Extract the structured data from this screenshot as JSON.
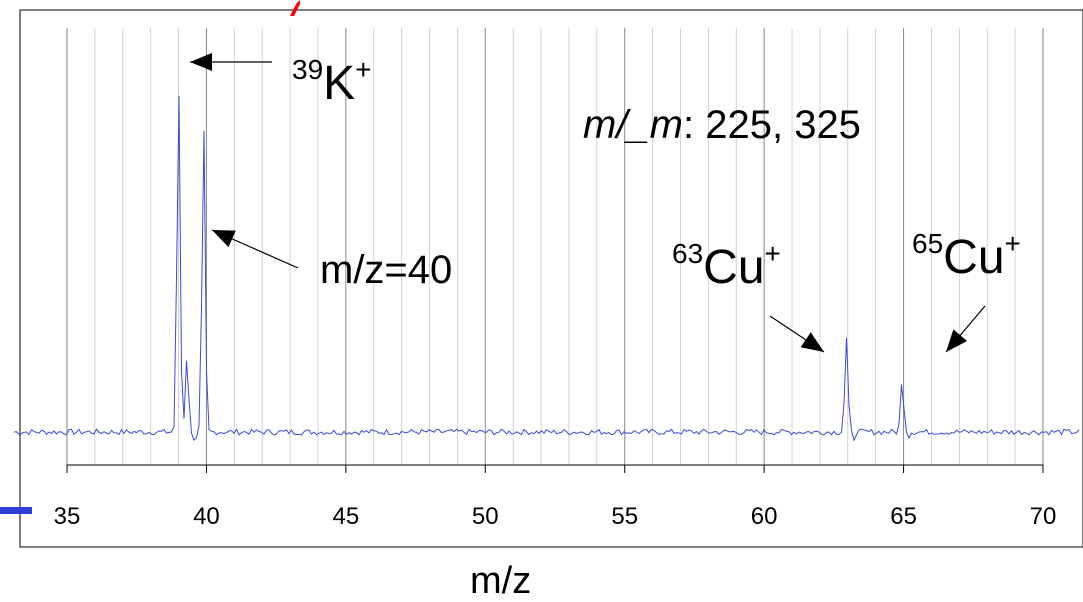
{
  "chart_data": {
    "type": "line",
    "xlabel": "m/z",
    "ylabel": "",
    "xlim": [
      35,
      70
    ],
    "x_ticks": [
      35,
      40,
      45,
      50,
      55,
      60,
      65,
      70
    ],
    "grid_minor_step": 1,
    "grid_major_step": 5,
    "line_color": "#3a4bd6",
    "baseline": 0,
    "ylim": [
      -1.5,
      12
    ],
    "peaks": [
      {
        "x": 39.0,
        "y": 13.5,
        "label_text": "K",
        "label_mass": "39",
        "label_charge": "+"
      },
      {
        "x": 39.3,
        "y": 2.9
      },
      {
        "x": 39.9,
        "y": 11.8,
        "label_text": "m/z=40"
      },
      {
        "x": 62.95,
        "y": 3.6,
        "label_text": "Cu",
        "label_mass": "63",
        "label_charge": "+"
      },
      {
        "x": 64.95,
        "y": 1.95,
        "label_text": "Cu",
        "label_mass": "65",
        "label_charge": "+"
      }
    ],
    "annotation": {
      "italic_part": "m/_m",
      "rest": ": 225, 325"
    }
  },
  "labels": {
    "k_mass": "39",
    "k_symbol": "K",
    "k_charge": "+",
    "mz40": "m/z=40",
    "cu63_mass": "63",
    "cu63_symbol": "Cu",
    "cu63_charge": "+",
    "cu65_mass": "65",
    "cu65_symbol": "Cu",
    "cu65_charge": "+",
    "res_italic": "m/_m",
    "res_rest": ": 225, 325",
    "xlabel": "m/z"
  },
  "colors": {
    "red_mark": "#ff0000",
    "blue_bar": "#2b3fd6"
  }
}
